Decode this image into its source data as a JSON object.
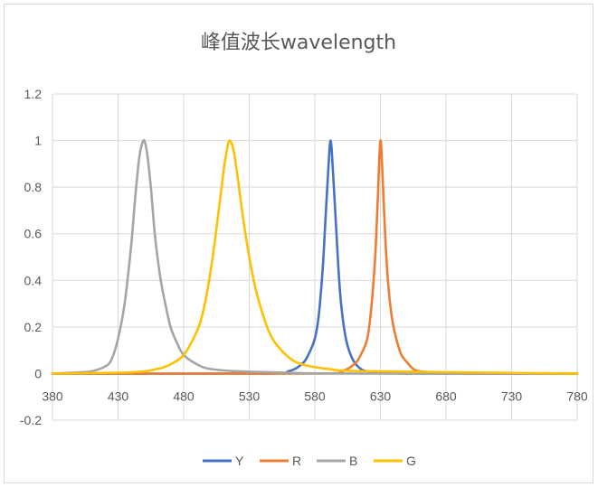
{
  "chart_data": {
    "type": "line",
    "title": "峰值波长wavelength",
    "xlabel": "",
    "ylabel": "",
    "xlim": [
      380,
      780
    ],
    "ylim": [
      -0.2,
      1.2
    ],
    "x_ticks": [
      380,
      430,
      480,
      530,
      580,
      630,
      680,
      730,
      780
    ],
    "y_ticks": [
      -0.2,
      0,
      0.2,
      0.4,
      0.6,
      0.8,
      1,
      1.2
    ],
    "x_tick_labels": [
      "380",
      "430",
      "480",
      "530",
      "580",
      "630",
      "680",
      "730",
      "780"
    ],
    "y_tick_labels": [
      "-0.2",
      "0",
      "0.2",
      "0.4",
      "0.6",
      "0.8",
      "1",
      "1.2"
    ],
    "grid": true,
    "legend_position": "bottom",
    "series": [
      {
        "name": "Y",
        "color": "#4472C4",
        "peak": 592,
        "x": [
          380,
          540,
          560,
          570,
          575,
          580,
          583,
          586,
          588,
          590,
          592,
          594,
          596,
          598,
          600,
          603,
          606,
          610,
          615,
          620,
          630,
          650,
          700,
          780
        ],
        "y": [
          0,
          0,
          0.01,
          0.04,
          0.08,
          0.15,
          0.25,
          0.45,
          0.65,
          0.85,
          1.0,
          0.85,
          0.65,
          0.45,
          0.3,
          0.17,
          0.1,
          0.05,
          0.02,
          0.01,
          0.005,
          0,
          0,
          0
        ]
      },
      {
        "name": "R",
        "color": "#ED7D31",
        "peak": 630,
        "x": [
          380,
          580,
          600,
          610,
          615,
          620,
          623,
          626,
          628,
          630,
          632,
          634,
          636,
          638,
          640,
          643,
          646,
          650,
          655,
          660,
          670,
          690,
          720,
          780
        ],
        "y": [
          0,
          0,
          0.01,
          0.04,
          0.08,
          0.15,
          0.28,
          0.5,
          0.75,
          1.0,
          0.8,
          0.55,
          0.38,
          0.27,
          0.2,
          0.13,
          0.08,
          0.05,
          0.02,
          0.01,
          0.005,
          0,
          0,
          0
        ]
      },
      {
        "name": "B",
        "color": "#A5A5A5",
        "peak": 450,
        "x": [
          380,
          400,
          410,
          420,
          425,
          430,
          435,
          440,
          443,
          446,
          448,
          450,
          452,
          455,
          458,
          462,
          466,
          470,
          475,
          480,
          490,
          500,
          520,
          550,
          600,
          780
        ],
        "y": [
          0,
          0.005,
          0.01,
          0.03,
          0.06,
          0.15,
          0.3,
          0.55,
          0.75,
          0.92,
          0.98,
          1.0,
          0.95,
          0.8,
          0.6,
          0.42,
          0.3,
          0.2,
          0.13,
          0.08,
          0.04,
          0.02,
          0.01,
          0.005,
          0,
          0
        ]
      },
      {
        "name": "G",
        "color": "#FFC000",
        "peak": 515,
        "x": [
          380,
          440,
          460,
          470,
          480,
          490,
          495,
          500,
          505,
          510,
          513,
          515,
          518,
          521,
          525,
          530,
          535,
          540,
          545,
          550,
          560,
          570,
          590,
          620,
          780
        ],
        "y": [
          0,
          0.005,
          0.02,
          0.04,
          0.08,
          0.18,
          0.27,
          0.42,
          0.62,
          0.85,
          0.96,
          1.0,
          0.96,
          0.85,
          0.68,
          0.5,
          0.36,
          0.26,
          0.18,
          0.13,
          0.07,
          0.04,
          0.02,
          0.01,
          0
        ]
      }
    ]
  }
}
